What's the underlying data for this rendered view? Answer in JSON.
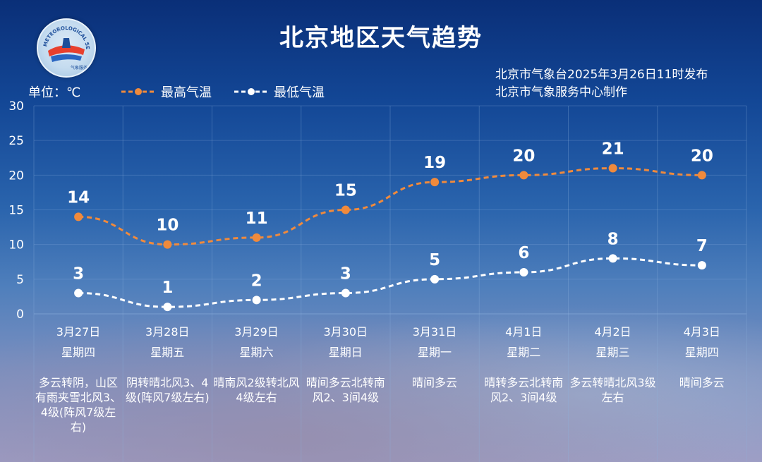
{
  "title": "北京地区天气趋势",
  "unit_label": "单位：℃",
  "issuer": {
    "line1": "北京市气象台2025年3月26日11时发布",
    "line2": "北京市气象服务中心制作"
  },
  "legend": {
    "max_label": "最高气温",
    "min_label": "最低气温"
  },
  "colors": {
    "max_series": "#f08a3c",
    "min_series": "#ffffff",
    "grid": "#8fb3df"
  },
  "logo": {
    "text": "METEOROLOGICAL SERVICE BEIJING 气象服务",
    "icon": "meteorological-service-logo"
  },
  "days": [
    {
      "date": "3月27日",
      "weekday": "星期四",
      "weather": "多云转阴，山区有雨夹雪北风3、4级(阵风7级左右)"
    },
    {
      "date": "3月28日",
      "weekday": "星期五",
      "weather": "阴转晴北风3、4级(阵风7级左右)"
    },
    {
      "date": "3月29日",
      "weekday": "星期六",
      "weather": "晴南风2级转北风4级左右"
    },
    {
      "date": "3月30日",
      "weekday": "星期日",
      "weather": "晴间多云北转南风2、3间4级"
    },
    {
      "date": "3月31日",
      "weekday": "星期一",
      "weather": "晴间多云"
    },
    {
      "date": "4月1日",
      "weekday": "星期二",
      "weather": "晴转多云北转南风2、3间4级"
    },
    {
      "date": "4月2日",
      "weekday": "星期三",
      "weather": "多云转晴北风3级左右"
    },
    {
      "date": "4月3日",
      "weekday": "星期四",
      "weather": "晴间多云"
    }
  ],
  "chart_data": {
    "type": "line",
    "categories": [
      "3月27日",
      "3月28日",
      "3月29日",
      "3月30日",
      "3月31日",
      "4月1日",
      "4月2日",
      "4月3日"
    ],
    "series": [
      {
        "name": "最高气温",
        "values": [
          14,
          10,
          11,
          15,
          19,
          20,
          21,
          20
        ]
      },
      {
        "name": "最低气温",
        "values": [
          3,
          1,
          2,
          3,
          5,
          6,
          8,
          7
        ]
      }
    ],
    "ylim": [
      0,
      30
    ],
    "yticks": [
      0,
      5,
      10,
      15,
      20,
      25,
      30
    ],
    "grid": true,
    "legend_position": "top-left"
  }
}
